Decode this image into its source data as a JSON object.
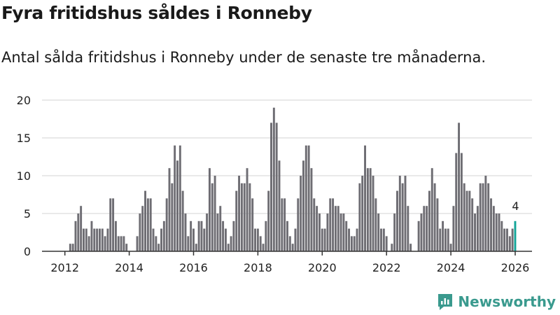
{
  "title": "Fyra fritidshus såldes i Ronneby",
  "subtitle": "Antal sålda fritidshus i Ronneby under de senaste tre månaderna.",
  "logo": "Newsworthy",
  "colors": {
    "bar": "#6e6d73",
    "highlight": "#13a598",
    "grid": "#e2e2e2",
    "brand": "#3a9a8e"
  },
  "chart_data": {
    "type": "bar",
    "title": "Fyra fritidshus såldes i Ronneby",
    "xlabel": "",
    "ylabel": "",
    "ylim": [
      0,
      20
    ],
    "yticks": [
      "0",
      "5",
      "10",
      "15",
      "20"
    ],
    "xticks": [
      "2012",
      "2014",
      "2016",
      "2018",
      "2020",
      "2022",
      "2024",
      "2026"
    ],
    "start_month": "2012-03",
    "interval": "monthly",
    "values": [
      1,
      1,
      4,
      5,
      6,
      3,
      3,
      2,
      4,
      3,
      3,
      3,
      3,
      2,
      3,
      7,
      7,
      4,
      2,
      2,
      2,
      1,
      0,
      0,
      0,
      2,
      5,
      6,
      8,
      7,
      7,
      3,
      2,
      1,
      3,
      4,
      7,
      11,
      9,
      14,
      12,
      14,
      8,
      5,
      2,
      4,
      3,
      1,
      4,
      4,
      3,
      5,
      11,
      9,
      10,
      5,
      6,
      4,
      3,
      1,
      2,
      4,
      8,
      10,
      9,
      9,
      11,
      9,
      7,
      3,
      3,
      2,
      1,
      4,
      8,
      17,
      19,
      17,
      12,
      7,
      7,
      4,
      2,
      1,
      3,
      7,
      10,
      12,
      14,
      14,
      11,
      7,
      6,
      5,
      3,
      3,
      5,
      7,
      7,
      6,
      6,
      5,
      5,
      4,
      3,
      2,
      2,
      3,
      9,
      10,
      14,
      11,
      11,
      10,
      7,
      5,
      3,
      3,
      2,
      0,
      1,
      5,
      8,
      10,
      9,
      10,
      6,
      1,
      0,
      0,
      4,
      5,
      6,
      6,
      8,
      11,
      9,
      7,
      3,
      4,
      3,
      3,
      1,
      6,
      13,
      17,
      13,
      9,
      8,
      8,
      7,
      5,
      6,
      9,
      9,
      10,
      9,
      7,
      6,
      5,
      5,
      4,
      3,
      3,
      2,
      3,
      4
    ],
    "annotation": "4",
    "grid": true
  }
}
